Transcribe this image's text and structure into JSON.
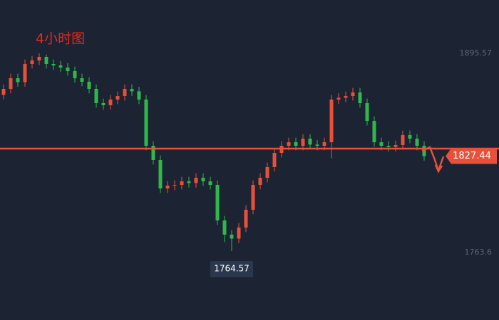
{
  "chart_data": {
    "type": "candlestick",
    "title": "4小时图",
    "up_color": "#e8503a",
    "down_color": "#2fb84a",
    "open": [
      1868.0,
      1872.01,
      1879.08,
      1876.5,
      1888.5,
      1890.86,
      1893.22,
      1888.5,
      1887.56,
      1886.15,
      1883.79,
      1879.08,
      1876.72,
      1872.01,
      1862.58,
      1861.2,
      1864.94,
      1867.29,
      1872.01,
      1870.4,
      1864.94,
      1834.3,
      1824.88,
      1806.03,
      1807.9,
      1808.38,
      1810.74,
      1809.6,
      1813.09,
      1810.74,
      1808.38,
      1784.82,
      1775.39,
      1772.8,
      1780.1,
      1791.89,
      1808.38,
      1813.09,
      1820.16,
      1829.59,
      1834.3,
      1836.66,
      1834.3,
      1839.02,
      1835.1,
      1834.3,
      1836.66,
      1864.94,
      1866.1,
      1867.29,
      1869.65,
      1862.58,
      1850.8,
      1836.66,
      1834.3,
      1833.5,
      1834.8,
      1841.37,
      1839.02,
      1834.3
    ],
    "high": [
      1875.01,
      1882.08,
      1882.08,
      1891.5,
      1893.86,
      1895.57,
      1894.8,
      1891.5,
      1890.56,
      1889.15,
      1886.79,
      1882.08,
      1879.72,
      1875.01,
      1865.58,
      1867.94,
      1870.29,
      1875.01,
      1875.01,
      1873.4,
      1867.94,
      1837.3,
      1827.88,
      1810.9,
      1811.38,
      1813.74,
      1813.74,
      1816.09,
      1816.09,
      1813.74,
      1811.38,
      1787.82,
      1778.39,
      1783.1,
      1794.89,
      1811.38,
      1816.09,
      1823.16,
      1832.59,
      1837.3,
      1839.66,
      1839.66,
      1842.02,
      1842.02,
      1838.1,
      1839.66,
      1867.94,
      1869.1,
      1870.29,
      1872.65,
      1872.65,
      1865.58,
      1853.8,
      1839.66,
      1837.3,
      1837.8,
      1844.37,
      1844.37,
      1842.02,
      1837.3
    ],
    "low": [
      1865.0,
      1869.01,
      1873.5,
      1873.5,
      1885.5,
      1887.86,
      1885.5,
      1884.56,
      1883.15,
      1880.79,
      1876.08,
      1873.72,
      1869.01,
      1859.58,
      1858.2,
      1858.2,
      1861.94,
      1864.29,
      1867.4,
      1861.94,
      1831.3,
      1821.88,
      1803.03,
      1803.03,
      1804.9,
      1805.38,
      1806.6,
      1806.6,
      1807.74,
      1805.38,
      1781.82,
      1770.39,
      1764.57,
      1769.8,
      1777.1,
      1788.89,
      1805.38,
      1810.09,
      1817.16,
      1826.59,
      1831.3,
      1831.3,
      1831.3,
      1832.1,
      1831.3,
      1831.3,
      1826.0,
      1861.94,
      1863.1,
      1864.29,
      1859.58,
      1847.8,
      1833.66,
      1831.3,
      1830.5,
      1830.5,
      1831.8,
      1836.02,
      1831.3,
      1824.44
    ],
    "close": [
      1872.01,
      1879.08,
      1876.5,
      1888.5,
      1890.86,
      1893.22,
      1888.5,
      1887.56,
      1886.15,
      1883.79,
      1879.08,
      1876.72,
      1872.01,
      1862.58,
      1861.2,
      1864.94,
      1867.29,
      1872.01,
      1870.4,
      1864.94,
      1834.3,
      1824.88,
      1806.03,
      1807.9,
      1808.38,
      1810.74,
      1809.6,
      1813.09,
      1810.74,
      1808.38,
      1784.82,
      1775.39,
      1772.8,
      1780.1,
      1791.89,
      1808.38,
      1813.09,
      1820.16,
      1829.59,
      1834.3,
      1836.66,
      1834.3,
      1839.02,
      1835.1,
      1834.3,
      1836.66,
      1864.94,
      1866.1,
      1867.29,
      1869.65,
      1862.58,
      1850.8,
      1836.66,
      1834.3,
      1833.5,
      1834.8,
      1841.37,
      1839.02,
      1834.3,
      1827.44
    ],
    "ylim": [
      1718.83,
      1930.92
    ],
    "yticks": [
      1895.57,
      1763.6
    ],
    "hline": 1832.4,
    "hline_color": "#e8503a"
  }
}
